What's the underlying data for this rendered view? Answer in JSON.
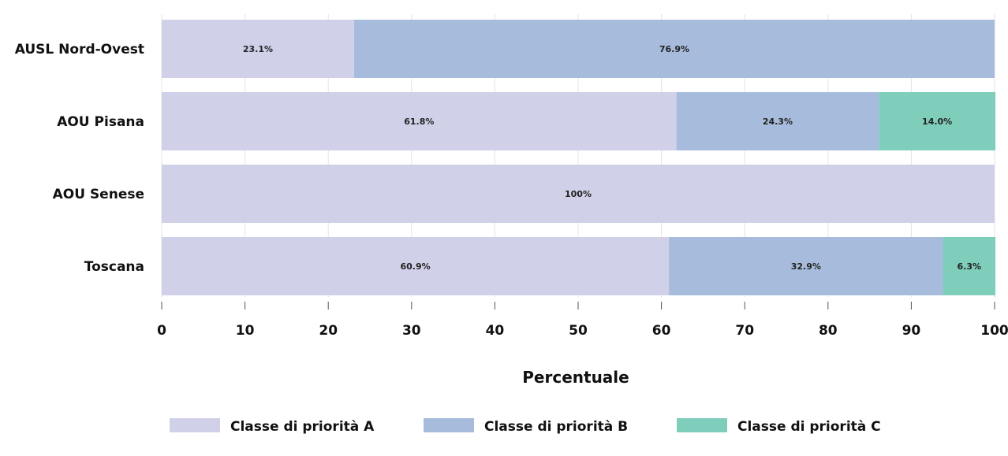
{
  "chart_data": {
    "type": "bar",
    "orientation": "horizontal",
    "stacked": true,
    "categories": [
      "AUSL Nord-Ovest",
      "AOU Pisana",
      "AOU Senese",
      "Toscana"
    ],
    "series": [
      {
        "name": "Classe di priorità A",
        "color": "#d0d1e8",
        "values": [
          23.1,
          61.8,
          100,
          60.9
        ],
        "labels": [
          "23.1%",
          "61.8%",
          "100%",
          "60.9%"
        ]
      },
      {
        "name": "Classe di priorità B",
        "color": "#a7bcdc",
        "values": [
          76.9,
          24.3,
          0,
          32.9
        ],
        "labels": [
          "76.9%",
          "24.3%",
          "",
          "32.9%"
        ]
      },
      {
        "name": "Classe di priorità C",
        "color": "#7fcdbb",
        "values": [
          0,
          14.0,
          0,
          6.3
        ],
        "labels": [
          "",
          "14.0%",
          "",
          "6.3%"
        ]
      }
    ],
    "xlabel": "Percentuale",
    "ylabel": "",
    "xlim": [
      0,
      100
    ],
    "xticks": [
      0,
      10,
      20,
      30,
      40,
      50,
      60,
      70,
      80,
      90,
      100
    ],
    "grid": true,
    "legend_position": "bottom"
  }
}
